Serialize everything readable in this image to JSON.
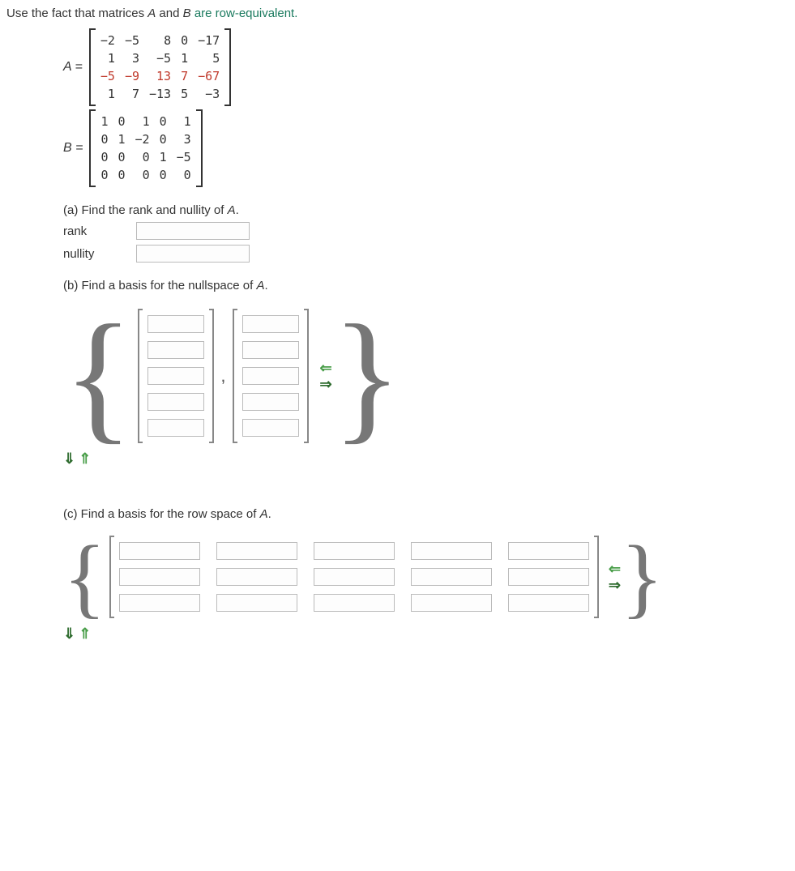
{
  "prompt": {
    "pre": "Use the fact that matrices ",
    "A": "A",
    "mid": " and ",
    "B": "B",
    "post": " are row-equivalent."
  },
  "accent_color": "#1a7a5e",
  "error_color": "#c0392b",
  "matrixA": {
    "label": "A =",
    "rows": [
      [
        "−2",
        "−5",
        "8",
        "0",
        "−17"
      ],
      [
        "1",
        "3",
        "−5",
        "1",
        "5"
      ],
      [
        "−5",
        "−9",
        "13",
        "7",
        "−67"
      ],
      [
        "1",
        "7",
        "−13",
        "5",
        "−3"
      ]
    ],
    "highlight_row_index": 2
  },
  "matrixB": {
    "label": "B =",
    "rows": [
      [
        "1",
        "0",
        "1",
        "0",
        "1"
      ],
      [
        "0",
        "1",
        "−2",
        "0",
        "3"
      ],
      [
        "0",
        "0",
        "0",
        "1",
        "−5"
      ],
      [
        "0",
        "0",
        "0",
        "0",
        "0"
      ]
    ]
  },
  "partA": {
    "heading_pre": "(a) Find the rank and nullity of ",
    "heading_var": "A",
    "heading_post": ".",
    "rank_label": "rank",
    "nullity_label": "nullity"
  },
  "partB": {
    "heading_pre": "(b) Find a basis for the nullspace of ",
    "heading_var": "A",
    "heading_post": ".",
    "num_vectors": 2,
    "vector_height": 5
  },
  "partC": {
    "heading_pre": "(c) Find a basis for the row space of ",
    "heading_var": "A",
    "heading_post": ".",
    "num_rowvecs": 3,
    "row_width": 5
  },
  "arrows": {
    "left": "⇐",
    "right": "⇒",
    "down": "⇓",
    "up": "⇑"
  }
}
